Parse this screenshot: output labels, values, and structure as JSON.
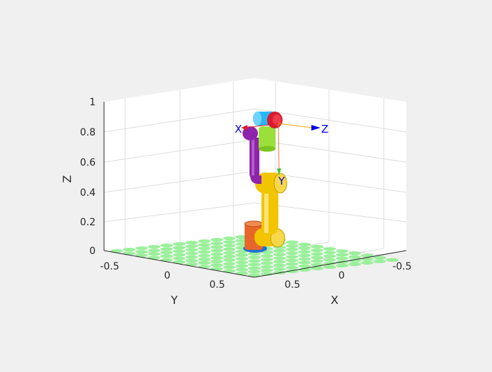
{
  "figure": {
    "background": "#f0f0f0",
    "grid": true,
    "axes": {
      "x": {
        "label": "X",
        "ticks": [
          "-0.5",
          "0",
          "0.5"
        ]
      },
      "y": {
        "label": "Y",
        "ticks": [
          "-0.5",
          "0",
          "0.5"
        ]
      },
      "z": {
        "label": "Z",
        "ticks": [
          "0",
          "0.2",
          "0.4",
          "0.6",
          "0.8",
          "1"
        ]
      }
    },
    "frame_labels": {
      "x": "X",
      "y": "Y",
      "z": "Z"
    },
    "colors": {
      "grid": "#dcdcdc",
      "axis_line": "#262626",
      "ground_tile": "#90ee90",
      "base_ring": "#1f6fd6",
      "link1": "#e8662a",
      "link2": "#f2c500",
      "link3": "#8e24aa",
      "wrist2": "#9be03a",
      "wrist1": "#29b6f6",
      "flange": "#d81b2d",
      "frame_axis": "#0000ee",
      "frame_z_line": "#ffa500",
      "frame_y_line": "#e87a33",
      "frame_y_arrow": "#3ac43a"
    }
  }
}
